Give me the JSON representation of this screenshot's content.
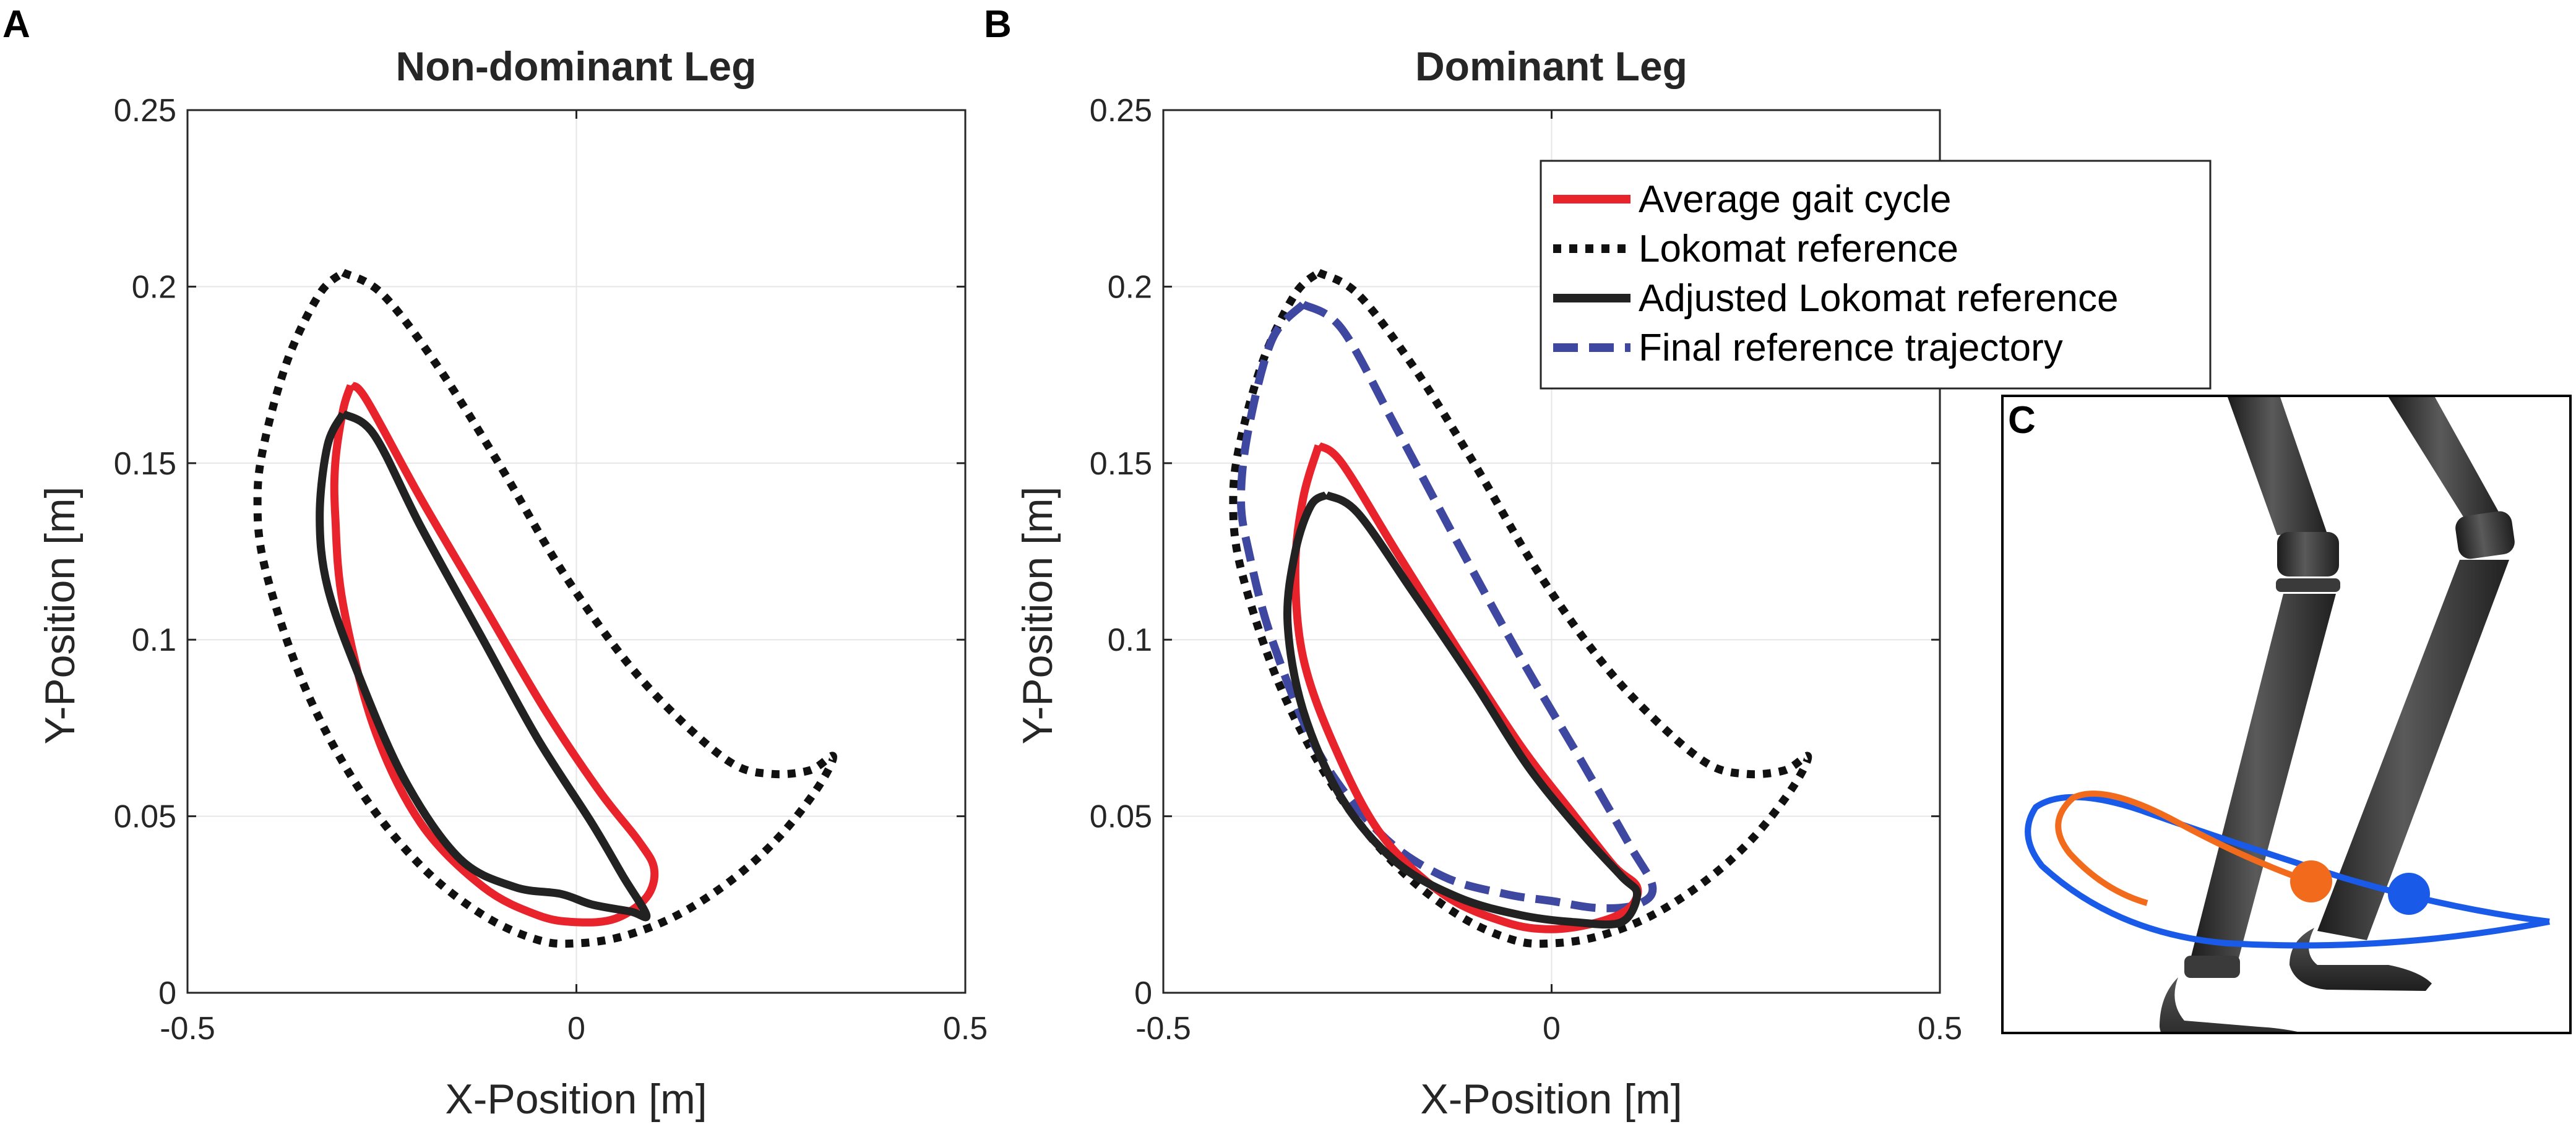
{
  "panels": {
    "A": {
      "letter": "A"
    },
    "B": {
      "letter": "B"
    },
    "C": {
      "letter": "C"
    }
  },
  "colors": {
    "average": "#e8232c",
    "lokomat": "#111111",
    "adjusted": "#222222",
    "final": "#3f48a0",
    "orange": "#f26a1b",
    "blue": "#1a5ae8",
    "grid": "#e6e6e6"
  },
  "legend": {
    "items": [
      {
        "key": "average",
        "label": "Average gait cycle",
        "style": "solid",
        "color": "#e8232c"
      },
      {
        "key": "lokomat",
        "label": "Lokomat reference",
        "style": "dotted",
        "color": "#111111"
      },
      {
        "key": "adjusted",
        "label": "Adjusted Lokomat reference",
        "style": "solid",
        "color": "#222222"
      },
      {
        "key": "final",
        "label": "Final reference trajectory",
        "style": "dashed",
        "color": "#3f48a0"
      }
    ]
  },
  "chart_data": [
    {
      "type": "line",
      "panel": "A",
      "title": "Non-dominant Leg",
      "xlabel": "X-Position [m]",
      "ylabel": "Y-Position [m]",
      "xlim": [
        -0.5,
        0.5
      ],
      "ylim": [
        0,
        0.25
      ],
      "xticks": [
        -0.5,
        0,
        0.5
      ],
      "xtick_labels": [
        "-0.5",
        "0",
        "0.5"
      ],
      "yticks": [
        0,
        0.05,
        0.1,
        0.15,
        0.2,
        0.25
      ],
      "ytick_labels": [
        "0",
        "0.05",
        "0.1",
        "0.15",
        "0.2",
        "0.25"
      ],
      "grid": true,
      "series": [
        {
          "name": "Lokomat reference",
          "key": "lokomat",
          "style": "dotted",
          "x": [
            -0.3,
            -0.25,
            -0.18,
            -0.1,
            -0.02,
            0.06,
            0.13,
            0.2,
            0.25,
            0.3,
            0.33,
            0.31,
            0.26,
            0.2,
            0.13,
            0.06,
            0.0,
            -0.05,
            -0.12,
            -0.2,
            -0.28,
            -0.35,
            -0.4,
            -0.41,
            -0.4,
            -0.37,
            -0.33,
            -0.3
          ],
          "y": [
            0.204,
            0.198,
            0.178,
            0.15,
            0.12,
            0.095,
            0.078,
            0.065,
            0.062,
            0.063,
            0.067,
            0.058,
            0.044,
            0.032,
            0.022,
            0.016,
            0.014,
            0.015,
            0.022,
            0.036,
            0.058,
            0.087,
            0.12,
            0.14,
            0.157,
            0.18,
            0.198,
            0.204
          ]
        },
        {
          "name": "Average gait cycle",
          "key": "average",
          "style": "solid",
          "x": [
            -0.29,
            -0.27,
            -0.2,
            -0.12,
            -0.04,
            0.03,
            0.08,
            0.1,
            0.09,
            0.05,
            0.0,
            -0.05,
            -0.12,
            -0.2,
            -0.26,
            -0.3,
            -0.31,
            -0.31,
            -0.3,
            -0.29
          ],
          "y": [
            0.172,
            0.168,
            0.14,
            0.11,
            0.08,
            0.057,
            0.043,
            0.035,
            0.027,
            0.021,
            0.02,
            0.022,
            0.03,
            0.048,
            0.075,
            0.11,
            0.135,
            0.15,
            0.165,
            0.172
          ]
        },
        {
          "name": "Adjusted Lokomat reference",
          "key": "adjusted",
          "style": "solid",
          "x": [
            -0.3,
            -0.26,
            -0.2,
            -0.12,
            -0.05,
            0.02,
            0.06,
            0.09,
            0.07,
            0.02,
            -0.02,
            -0.08,
            -0.15,
            -0.22,
            -0.28,
            -0.32,
            -0.33,
            -0.32,
            -0.3
          ],
          "y": [
            0.164,
            0.158,
            0.132,
            0.1,
            0.072,
            0.048,
            0.033,
            0.022,
            0.023,
            0.025,
            0.028,
            0.03,
            0.038,
            0.06,
            0.09,
            0.115,
            0.135,
            0.155,
            0.164
          ]
        }
      ]
    },
    {
      "type": "line",
      "panel": "B",
      "title": "Dominant Leg",
      "xlabel": "X-Position [m]",
      "ylabel": "Y-Position [m]",
      "xlim": [
        -0.5,
        0.5
      ],
      "ylim": [
        0,
        0.25
      ],
      "xticks": [
        -0.5,
        0,
        0.5
      ],
      "xtick_labels": [
        "-0.5",
        "0",
        "0.5"
      ],
      "yticks": [
        0,
        0.05,
        0.1,
        0.15,
        0.2,
        0.25
      ],
      "ytick_labels": [
        "0",
        "0.05",
        "0.1",
        "0.15",
        "0.2",
        "0.25"
      ],
      "grid": true,
      "series": [
        {
          "name": "Lokomat reference",
          "key": "lokomat",
          "style": "dotted",
          "x": [
            -0.3,
            -0.25,
            -0.18,
            -0.1,
            -0.02,
            0.06,
            0.13,
            0.2,
            0.25,
            0.3,
            0.33,
            0.31,
            0.26,
            0.2,
            0.13,
            0.06,
            0.0,
            -0.05,
            -0.12,
            -0.2,
            -0.28,
            -0.35,
            -0.4,
            -0.41,
            -0.4,
            -0.37,
            -0.33,
            -0.3
          ],
          "y": [
            0.204,
            0.198,
            0.178,
            0.15,
            0.12,
            0.095,
            0.078,
            0.065,
            0.062,
            0.063,
            0.067,
            0.058,
            0.044,
            0.032,
            0.022,
            0.016,
            0.014,
            0.015,
            0.022,
            0.036,
            0.058,
            0.087,
            0.12,
            0.14,
            0.157,
            0.18,
            0.198,
            0.204
          ]
        },
        {
          "name": "Final reference trajectory",
          "key": "final",
          "style": "dashed",
          "x": [
            -0.32,
            -0.27,
            -0.2,
            -0.12,
            -0.04,
            0.04,
            0.1,
            0.13,
            0.11,
            0.06,
            0.0,
            -0.06,
            -0.14,
            -0.22,
            -0.3,
            -0.36,
            -0.39,
            -0.4,
            -0.39,
            -0.36,
            -0.32
          ],
          "y": [
            0.195,
            0.188,
            0.16,
            0.127,
            0.095,
            0.065,
            0.042,
            0.03,
            0.025,
            0.024,
            0.026,
            0.028,
            0.033,
            0.045,
            0.068,
            0.1,
            0.125,
            0.14,
            0.16,
            0.185,
            0.195
          ]
        },
        {
          "name": "Average gait cycle",
          "key": "average",
          "style": "solid",
          "x": [
            -0.3,
            -0.27,
            -0.2,
            -0.12,
            -0.04,
            0.03,
            0.08,
            0.11,
            0.1,
            0.06,
            0.0,
            -0.06,
            -0.14,
            -0.22,
            -0.28,
            -0.32,
            -0.33,
            -0.32,
            -0.3
          ],
          "y": [
            0.155,
            0.15,
            0.125,
            0.097,
            0.07,
            0.05,
            0.036,
            0.03,
            0.024,
            0.02,
            0.018,
            0.02,
            0.028,
            0.045,
            0.07,
            0.095,
            0.12,
            0.14,
            0.155
          ]
        },
        {
          "name": "Adjusted Lokomat reference",
          "key": "adjusted",
          "style": "solid",
          "x": [
            -0.29,
            -0.25,
            -0.18,
            -0.1,
            -0.03,
            0.04,
            0.09,
            0.11,
            0.09,
            0.03,
            -0.04,
            -0.12,
            -0.2,
            -0.27,
            -0.32,
            -0.34,
            -0.33,
            -0.31,
            -0.29
          ],
          "y": [
            0.141,
            0.136,
            0.114,
            0.088,
            0.064,
            0.045,
            0.033,
            0.028,
            0.02,
            0.02,
            0.022,
            0.027,
            0.037,
            0.055,
            0.08,
            0.105,
            0.125,
            0.138,
            0.141
          ]
        }
      ]
    }
  ]
}
